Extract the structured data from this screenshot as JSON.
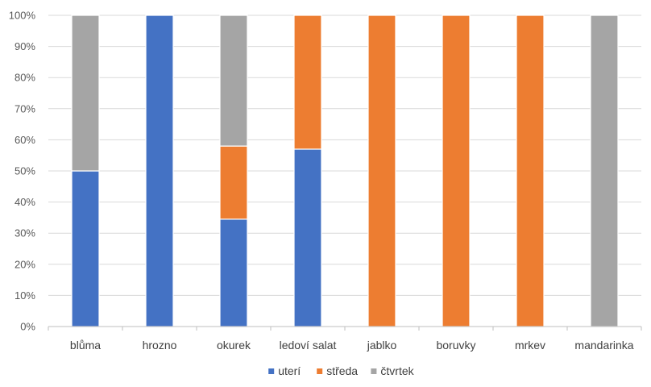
{
  "chart_data": {
    "type": "bar",
    "stacked": "percent",
    "categories": [
      "blůma",
      "hrozno",
      "okurek",
      "ledoví salat",
      "jablko",
      "boruvky",
      "mrkev",
      "mandarinka"
    ],
    "series": [
      {
        "name": "uterí",
        "color": "#4472c4",
        "values": [
          50,
          100,
          34.5,
          57,
          0,
          0,
          0,
          0
        ]
      },
      {
        "name": "středa",
        "color": "#ed7d31",
        "values": [
          0,
          0,
          23.5,
          43,
          100,
          100,
          100,
          0
        ]
      },
      {
        "name": "čtvrtek",
        "color": "#a5a5a5",
        "values": [
          50,
          0,
          42,
          0,
          0,
          0,
          0,
          100
        ]
      }
    ],
    "ylim": [
      0,
      100
    ],
    "yticks": [
      "0%",
      "10%",
      "20%",
      "30%",
      "40%",
      "50%",
      "60%",
      "70%",
      "80%",
      "90%",
      "100%"
    ],
    "title": "",
    "xlabel": "",
    "ylabel": "",
    "grid": true,
    "legend": "bottom"
  }
}
